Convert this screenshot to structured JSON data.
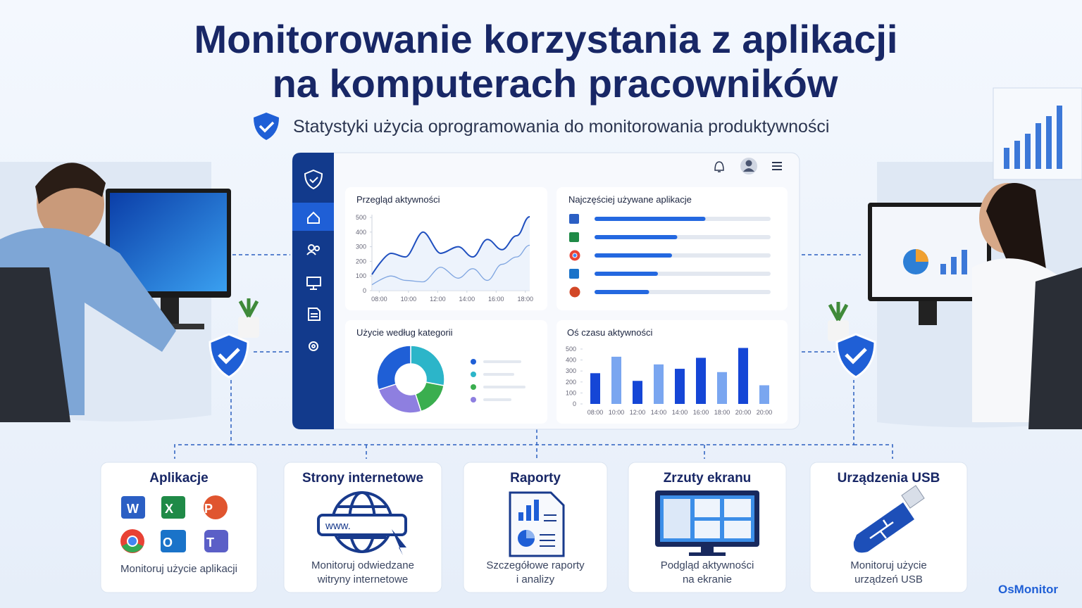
{
  "header": {
    "title": [
      "Monitorowanie korzystania z aplikacji",
      "na komputerach pracowników"
    ],
    "subtitle": "Statystyki użycia oprogramowania do monitorowania produktywności"
  },
  "chart_data": [
    {
      "type": "line",
      "title": "Przegląd aktywności",
      "x": [
        7.5,
        8.8,
        9.8,
        11,
        12.2,
        13.4,
        14.4,
        15.4,
        16.4,
        17.4,
        18.3
      ],
      "xlim": [
        7.5,
        18.3
      ],
      "xticks": [
        {
          "value": 8,
          "label": "08:00"
        },
        {
          "value": 10,
          "label": "10:00"
        },
        {
          "value": 12,
          "label": "12:00"
        },
        {
          "value": 14,
          "label": "14:00"
        },
        {
          "value": 16,
          "label": "16:00"
        },
        {
          "value": 18,
          "label": "18:00"
        }
      ],
      "ylim": [
        0,
        500
      ],
      "yticks": [
        0,
        100,
        200,
        300,
        400,
        500
      ],
      "series": [
        {
          "color": "#1f4fbf",
          "values": [
            110,
            255,
            230,
            400,
            255,
            300,
            230,
            350,
            280,
            375,
            505
          ]
        },
        {
          "color": "#7fa5e0",
          "values": [
            40,
            100,
            70,
            60,
            160,
            85,
            150,
            70,
            180,
            230,
            310
          ]
        }
      ]
    },
    {
      "type": "hbar",
      "title": "Najczęściej używane aplikacje",
      "values": [
        63,
        47,
        44,
        36,
        31
      ],
      "xlim": [
        0,
        100
      ],
      "color": "#2468e0"
    },
    {
      "type": "donut",
      "title": "Użycie według kategorii",
      "values": [
        28,
        17,
        25,
        30
      ],
      "colors": [
        "#2cb5c9",
        "#3aae4f",
        "#8e7fe0",
        "#1f5fd6"
      ]
    },
    {
      "type": "bar",
      "title": "Oś czasu aktywności",
      "categories": [
        "08:00",
        "10:00",
        "12:00",
        "14:00",
        "14:00",
        "16:00",
        "18:00",
        "20:00",
        "20:00"
      ],
      "values": [
        280,
        430,
        210,
        360,
        320,
        420,
        290,
        510,
        170
      ],
      "colors": [
        "#1546d6",
        "#7aa6f0",
        "#1546d6",
        "#7aa6f0",
        "#1546d6",
        "#1546d6",
        "#7aa6f0",
        "#1546d6",
        "#7aa6f0"
      ],
      "ylim": [
        0,
        500
      ],
      "yticks": [
        0,
        100,
        200,
        300,
        400,
        500
      ]
    }
  ],
  "cards": [
    {
      "title": "Aplikacje",
      "desc": [
        "Monitoruj użycie aplikacji"
      ]
    },
    {
      "title": "Strony internetowe",
      "desc": [
        "Monitoruj odwiedzane",
        "witryny internetowe"
      ],
      "url": "www."
    },
    {
      "title": "Raporty",
      "desc": [
        "Szczegółowe raporty",
        "i analizy"
      ]
    },
    {
      "title": "Zrzuty ekranu",
      "desc": [
        "Podgląd aktywności",
        "na ekranie"
      ]
    },
    {
      "title": "Urządzenia USB",
      "desc": [
        "Monitoruj użycie",
        "urządzeń USB"
      ]
    }
  ],
  "brand": "OsMonitor"
}
